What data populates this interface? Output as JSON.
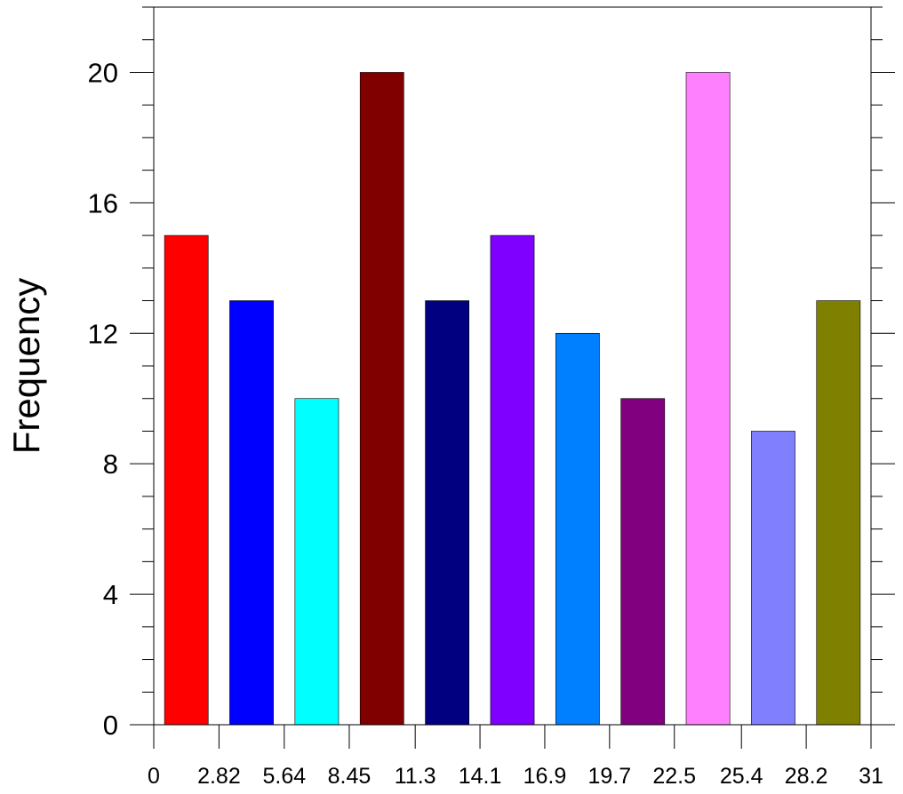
{
  "chart_data": {
    "type": "bar",
    "title": "",
    "xlabel": "",
    "ylabel": "Frequency",
    "bin_edges": [
      0,
      2.82,
      5.64,
      8.45,
      11.3,
      14.1,
      16.9,
      19.7,
      22.5,
      25.4,
      28.2,
      31
    ],
    "x_tick_labels": [
      "0",
      "2.82",
      "5.64",
      "8.45",
      "11.3",
      "14.1",
      "16.9",
      "19.7",
      "22.5",
      "25.4",
      "28.2",
      "31"
    ],
    "values": [
      15,
      13,
      10,
      20,
      13,
      15,
      12,
      10,
      20,
      9,
      13
    ],
    "colors": [
      "#ff0000",
      "#0000ff",
      "#00ffff",
      "#800000",
      "#000080",
      "#8000ff",
      "#0080ff",
      "#800080",
      "#ff80ff",
      "#8080ff",
      "#808000"
    ],
    "y_ticks": [
      0,
      4,
      8,
      12,
      16,
      20
    ],
    "y_tick_labels": [
      "0",
      "4",
      "8",
      "12",
      "16",
      "20"
    ],
    "xlim": [
      0,
      31
    ],
    "ylim": [
      0,
      22
    ],
    "grid": false
  }
}
